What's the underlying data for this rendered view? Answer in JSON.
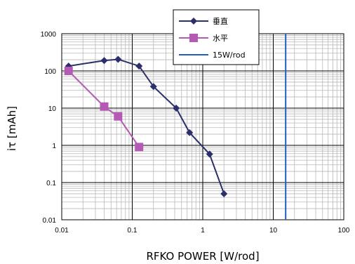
{
  "chart_data": {
    "type": "scatter",
    "xlabel": "RFKO POWER [W/rod]",
    "ylabel": "iτ [mAh]",
    "xscale": "log",
    "yscale": "log",
    "xlim": [
      0.01,
      100
    ],
    "ylim": [
      0.01,
      1000
    ],
    "grid": true,
    "legend_position": "top-right",
    "x_ticks": [
      "0.01",
      "0.1",
      "1",
      "10",
      "100"
    ],
    "y_ticks": [
      "0.01",
      "0.1",
      "1",
      "10",
      "100",
      "1000"
    ],
    "series": [
      {
        "name": "垂直",
        "marker": "diamond",
        "color": "#2B2F6B",
        "points": [
          {
            "x": 0.0125,
            "y": 135
          },
          {
            "x": 0.04,
            "y": 190
          },
          {
            "x": 0.063,
            "y": 205
          },
          {
            "x": 0.125,
            "y": 135
          },
          {
            "x": 0.2,
            "y": 38
          },
          {
            "x": 0.42,
            "y": 10
          },
          {
            "x": 0.65,
            "y": 2.2
          },
          {
            "x": 1.25,
            "y": 0.58
          },
          {
            "x": 2.0,
            "y": 0.05
          }
        ]
      },
      {
        "name": "水平",
        "marker": "square",
        "color": "#B45AB4",
        "points": [
          {
            "x": 0.0125,
            "y": 100
          },
          {
            "x": 0.04,
            "y": 11
          },
          {
            "x": 0.063,
            "y": 6
          },
          {
            "x": 0.125,
            "y": 0.9
          }
        ]
      },
      {
        "name": "15W/rod",
        "marker": "none",
        "color": "#1F5FBF",
        "vertical_line_x": 15
      }
    ]
  }
}
